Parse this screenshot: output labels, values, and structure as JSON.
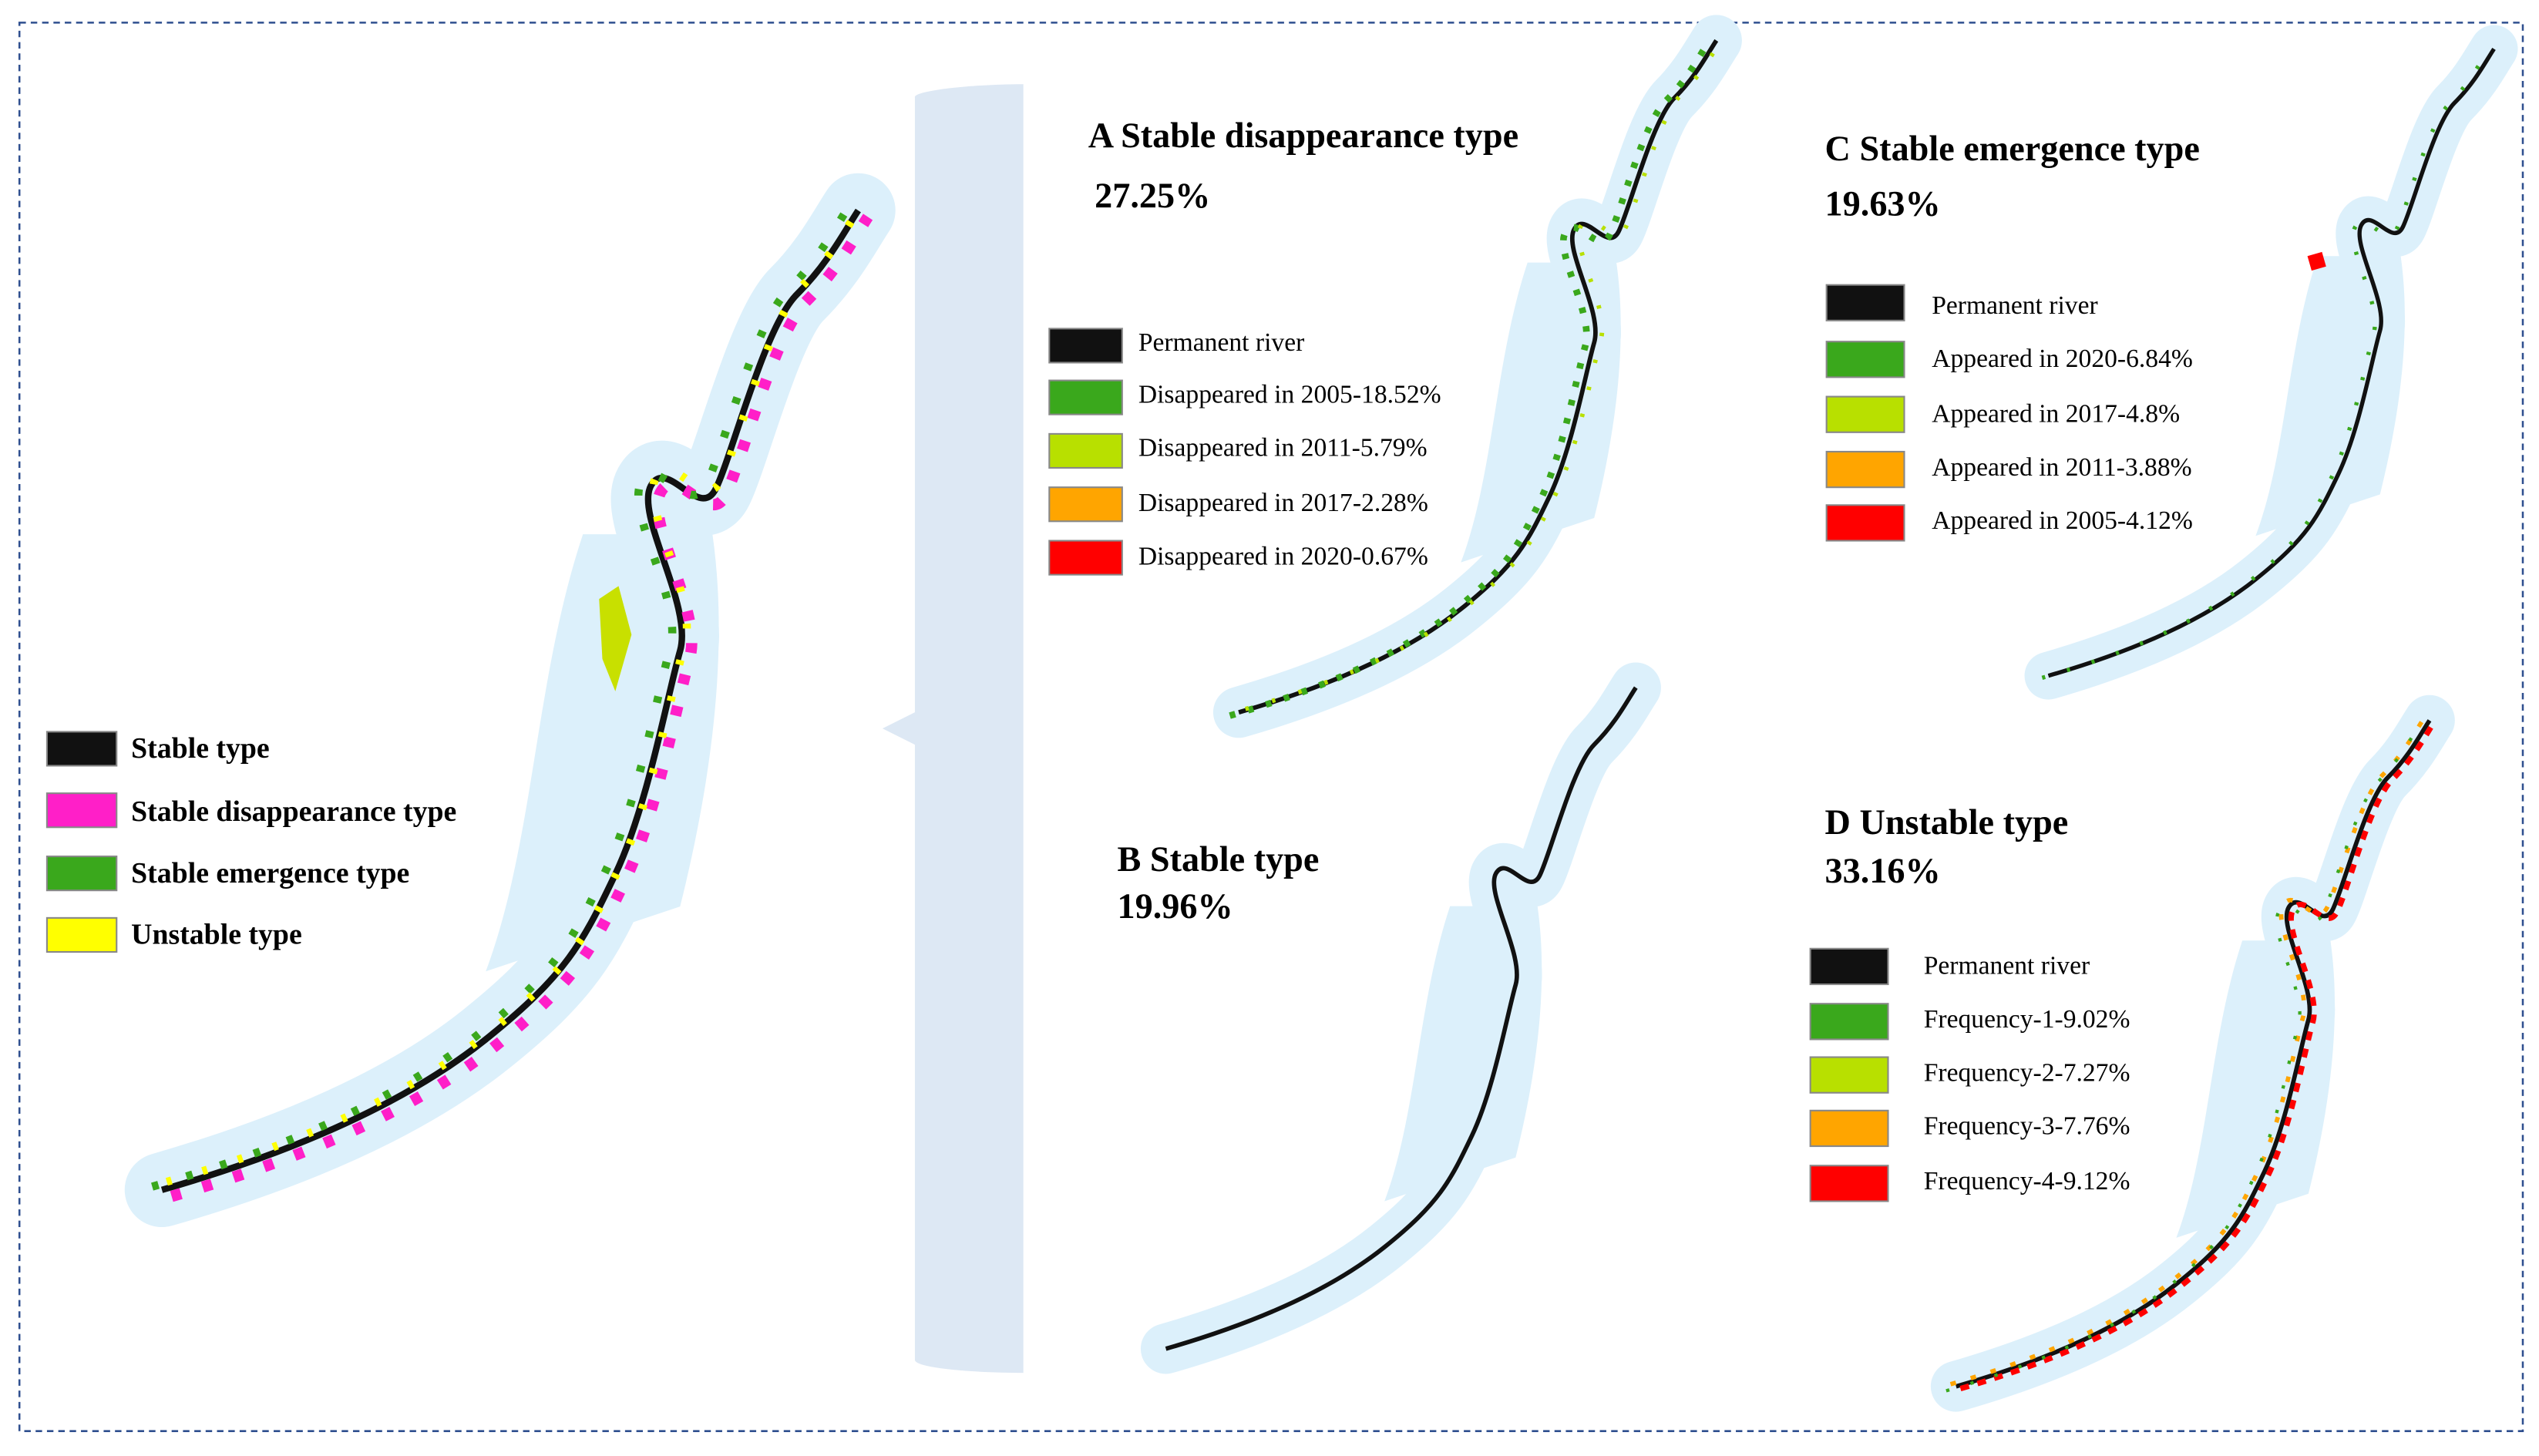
{
  "main_legend": [
    "Stable type",
    "Stable disappearance type",
    "Stable emergence type",
    "Unstable type"
  ],
  "panels": [
    {
      "title": "A Stable disappearance type",
      "share": "27.25%",
      "legend": [
        "Permanent river",
        "Disappeared in 2005-18.52%",
        "Disappeared in 2011-5.79%",
        "Disappeared in 2017-2.28%",
        "Disappeared in 2020-0.67%"
      ]
    },
    {
      "title": "B Stable type",
      "share": "19.96%"
    },
    {
      "title": "C Stable emergence type",
      "share": "19.63%",
      "legend": [
        "Permanent river",
        "Appeared in 2020-6.84%",
        "Appeared in 2017-4.8%",
        "Appeared in 2011-3.88%",
        "Appeared in 2005-4.12%"
      ]
    },
    {
      "title": "D Unstable type",
      "share": "33.16%",
      "legend": [
        "Permanent river",
        "Frequency-1-9.02%",
        "Frequency-2-7.27%",
        "Frequency-3-7.76%",
        "Frequency-4-9.12%"
      ]
    }
  ]
}
